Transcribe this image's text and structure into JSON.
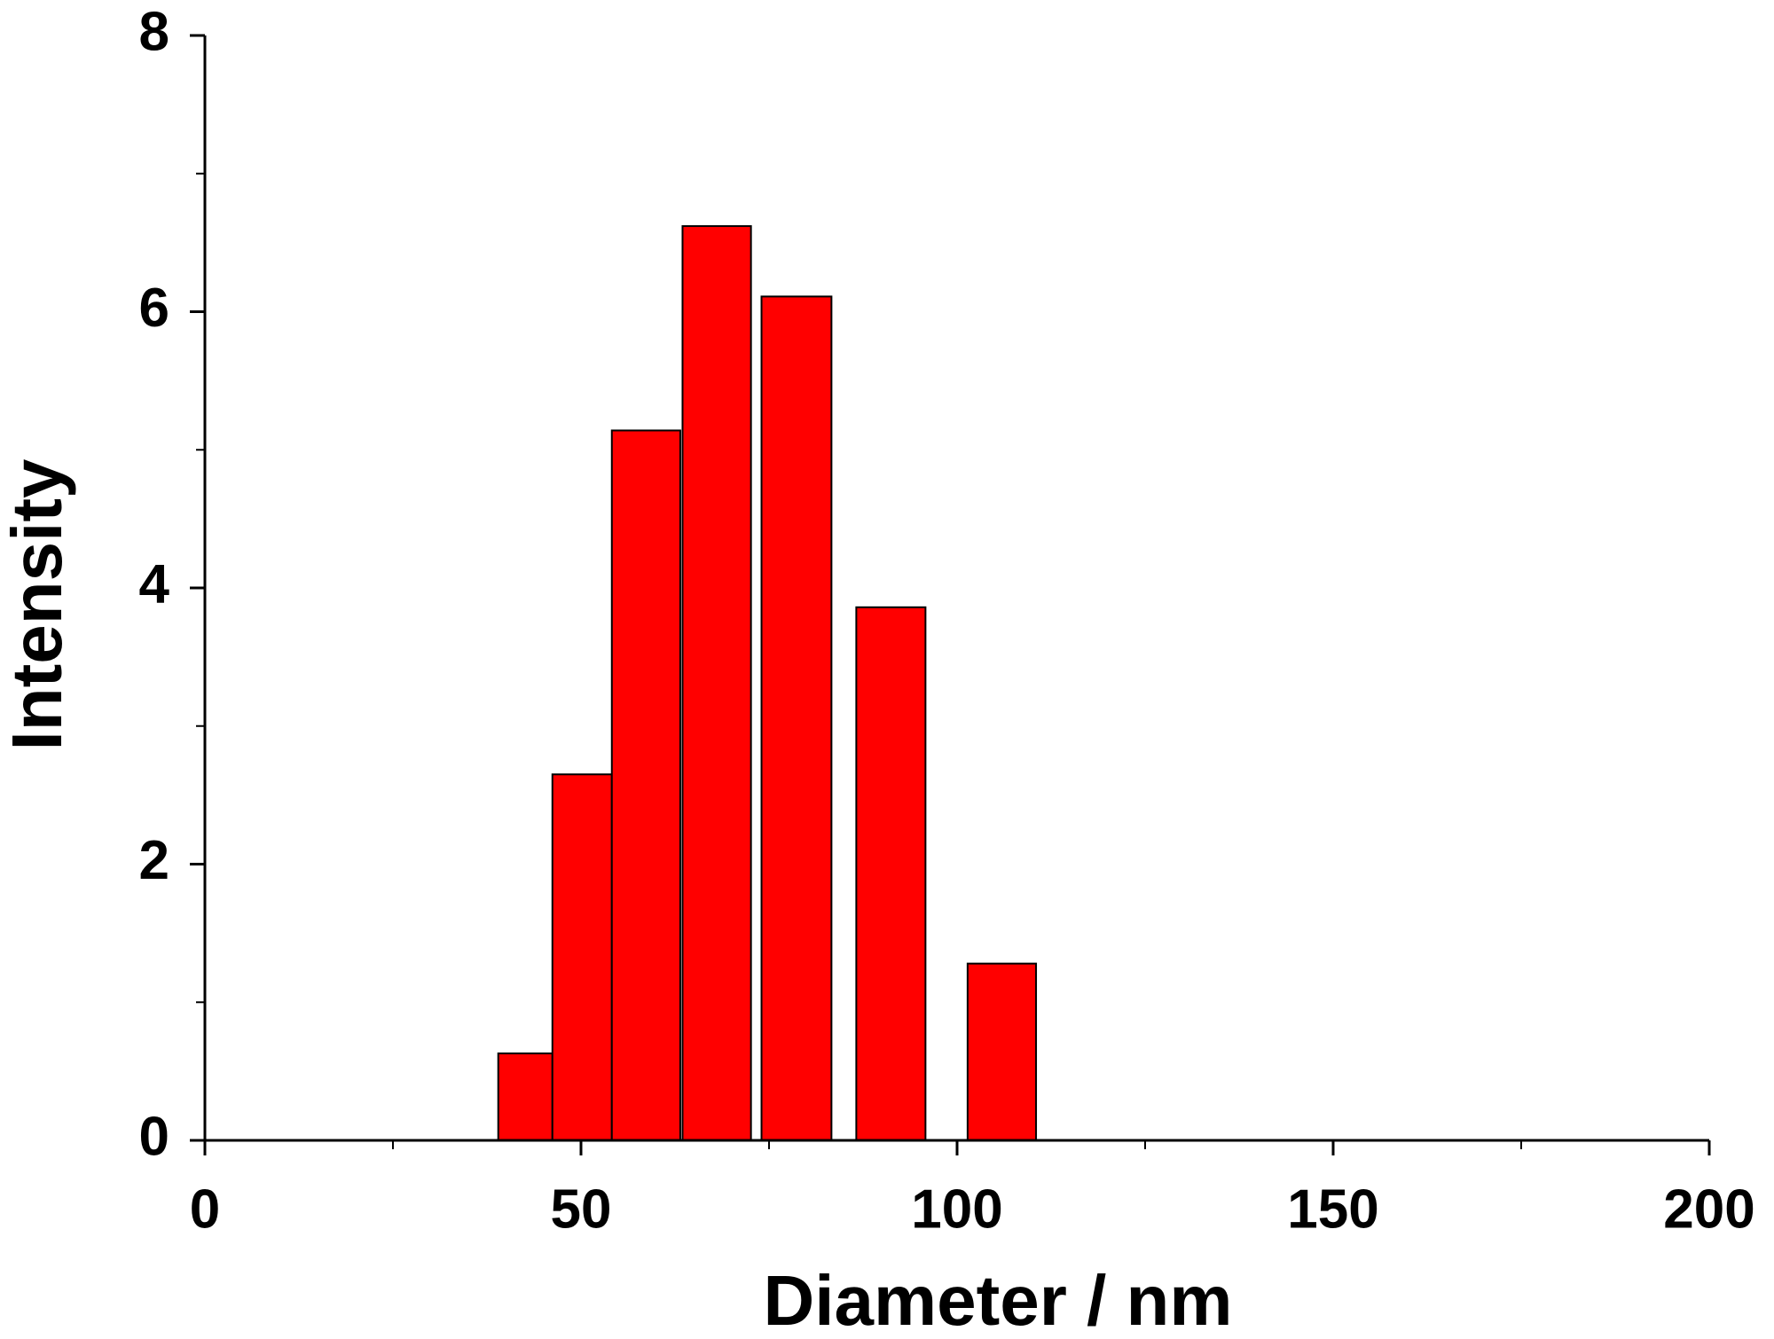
{
  "chart_data": {
    "type": "bar",
    "x_label": "Diameter / nm",
    "y_label": "Intensity",
    "left": [
      39,
      46.2,
      54.1,
      63.5,
      74,
      86.6,
      101.4
    ],
    "right": [
      46.2,
      54.1,
      63.2,
      72.6,
      83.3,
      95.8,
      110.5
    ],
    "values": [
      0.63,
      2.65,
      5.14,
      6.62,
      6.11,
      3.86,
      1.28
    ],
    "color": "#ff0000",
    "xlim": [
      0,
      200
    ],
    "xticks": [
      0,
      50,
      100,
      150,
      200
    ],
    "xminor": [
      25,
      75,
      125,
      175
    ],
    "ylim": [
      0,
      8
    ],
    "yticks": [
      0,
      2,
      4,
      6,
      8
    ],
    "yminor": [
      1,
      3,
      5,
      7
    ],
    "grid": false
  }
}
